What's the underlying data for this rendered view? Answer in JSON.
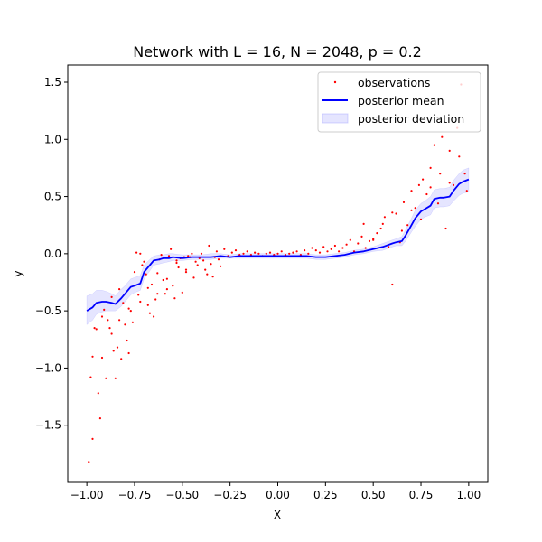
{
  "chart_data": {
    "type": "line",
    "title": "Network with L = 16, N = 2048, p = 0.2",
    "xlabel": "X",
    "ylabel": "y",
    "xlim": [
      -1.1,
      1.1
    ],
    "ylim": [
      -2.0,
      1.65
    ],
    "xticks": [
      -1.0,
      -0.75,
      -0.5,
      -0.25,
      0.0,
      0.25,
      0.5,
      0.75,
      1.0
    ],
    "xtick_labels": [
      "−1.00",
      "−0.75",
      "−0.50",
      "−0.25",
      "0.00",
      "0.25",
      "0.50",
      "0.75",
      "1.00"
    ],
    "yticks": [
      -1.5,
      -1.0,
      -0.5,
      0.0,
      0.5,
      1.0,
      1.5
    ],
    "ytick_labels": [
      "−1.5",
      "−1.0",
      "−0.5",
      "0.0",
      "0.5",
      "1.0",
      "1.5"
    ],
    "grid": false,
    "legend": {
      "position": "top-right",
      "entries": [
        "observations",
        "posterior mean",
        "posterior deviation"
      ]
    },
    "colors": {
      "observations": "#ff0000",
      "mean": "#0000ff",
      "band": "#7b7bff"
    },
    "series": [
      {
        "name": "observations",
        "kind": "scatter",
        "x": [
          -0.99,
          -0.98,
          -0.97,
          -0.96,
          -0.95,
          -0.94,
          -0.93,
          -0.92,
          -0.91,
          -0.9,
          -0.89,
          -0.88,
          -0.87,
          -0.86,
          -0.85,
          -0.84,
          -0.83,
          -0.82,
          -0.81,
          -0.8,
          -0.79,
          -0.78,
          -0.77,
          -0.76,
          -0.75,
          -0.74,
          -0.73,
          -0.72,
          -0.71,
          -0.7,
          -0.69,
          -0.68,
          -0.67,
          -0.66,
          -0.65,
          -0.64,
          -0.63,
          -0.62,
          -0.61,
          -0.6,
          -0.59,
          -0.58,
          -0.57,
          -0.56,
          -0.55,
          -0.54,
          -0.53,
          -0.52,
          -0.51,
          -0.5,
          -0.49,
          -0.48,
          -0.47,
          -0.46,
          -0.45,
          -0.44,
          -0.43,
          -0.42,
          -0.41,
          -0.4,
          -0.39,
          -0.38,
          -0.37,
          -0.36,
          -0.35,
          -0.34,
          -0.33,
          -0.32,
          -0.31,
          -0.3,
          -0.28,
          -0.26,
          -0.24,
          -0.22,
          -0.2,
          -0.18,
          -0.16,
          -0.14,
          -0.12,
          -0.1,
          -0.08,
          -0.06,
          -0.04,
          -0.02,
          0.0,
          0.02,
          0.04,
          0.06,
          0.08,
          0.1,
          0.12,
          0.14,
          0.16,
          0.18,
          0.2,
          0.22,
          0.24,
          0.26,
          0.28,
          0.3,
          0.32,
          0.34,
          0.36,
          0.38,
          0.4,
          0.42,
          0.44,
          0.46,
          0.48,
          0.5,
          0.52,
          0.54,
          0.56,
          0.58,
          0.6,
          0.62,
          0.64,
          0.66,
          0.68,
          0.7,
          0.72,
          0.74,
          0.76,
          0.78,
          0.8,
          0.82,
          0.84,
          0.86,
          0.88,
          0.9,
          0.92,
          0.94,
          0.96,
          0.98,
          0.99,
          -0.97,
          -0.92,
          -0.87,
          -0.83,
          -0.78,
          -0.72,
          -0.68,
          -0.63,
          -0.58,
          -0.53,
          -0.48,
          0.45,
          0.5,
          0.55,
          0.6,
          0.65,
          0.7,
          0.75,
          0.8,
          0.85,
          0.9,
          0.95
        ],
        "y": [
          -1.82,
          -1.08,
          -1.62,
          -0.65,
          -0.66,
          -1.22,
          -1.44,
          -0.91,
          -0.49,
          -1.09,
          -0.58,
          -0.65,
          -0.38,
          -0.85,
          -1.09,
          -0.82,
          -0.31,
          -0.92,
          -0.43,
          -0.62,
          -0.76,
          -0.87,
          -0.5,
          -0.6,
          -0.16,
          0.01,
          -0.36,
          0.0,
          -0.1,
          -0.07,
          -0.18,
          -0.45,
          -0.52,
          -0.27,
          -0.55,
          -0.4,
          -0.17,
          -0.05,
          -0.01,
          -0.23,
          -0.35,
          -0.31,
          -0.02,
          0.04,
          -0.28,
          -0.39,
          -0.08,
          -0.12,
          -0.04,
          -0.34,
          -0.03,
          -0.16,
          -0.02,
          -0.03,
          0.0,
          -0.21,
          -0.07,
          -0.1,
          -0.04,
          0.0,
          -0.06,
          -0.14,
          -0.18,
          0.07,
          -0.09,
          -0.2,
          -0.03,
          0.02,
          -0.05,
          -0.11,
          0.04,
          -0.02,
          0.01,
          0.03,
          -0.01,
          0.0,
          0.02,
          -0.01,
          0.01,
          0.0,
          -0.02,
          0.0,
          0.01,
          -0.01,
          0.0,
          0.02,
          -0.01,
          0.0,
          0.01,
          0.02,
          -0.01,
          0.03,
          0.0,
          0.05,
          0.03,
          0.01,
          0.06,
          0.02,
          0.04,
          0.07,
          0.02,
          0.05,
          0.08,
          0.12,
          0.02,
          0.09,
          0.15,
          0.05,
          0.11,
          0.13,
          0.18,
          0.22,
          0.32,
          0.06,
          -0.27,
          0.35,
          0.1,
          0.45,
          0.25,
          0.55,
          0.4,
          0.6,
          0.65,
          0.52,
          0.75,
          0.95,
          0.44,
          1.02,
          0.22,
          0.9,
          0.6,
          1.1,
          1.48,
          0.7,
          0.55,
          -0.9,
          -0.55,
          -0.7,
          -0.58,
          -0.48,
          -0.42,
          -0.3,
          -0.35,
          -0.22,
          -0.06,
          -0.14,
          0.26,
          0.12,
          0.26,
          0.36,
          0.2,
          0.38,
          0.3,
          0.58,
          0.7,
          0.62,
          0.85
        ]
      },
      {
        "name": "posterior mean",
        "kind": "line",
        "x": [
          -1.0,
          -0.97,
          -0.95,
          -0.92,
          -0.9,
          -0.87,
          -0.85,
          -0.82,
          -0.8,
          -0.77,
          -0.75,
          -0.72,
          -0.7,
          -0.67,
          -0.65,
          -0.62,
          -0.6,
          -0.57,
          -0.55,
          -0.5,
          -0.45,
          -0.4,
          -0.35,
          -0.3,
          -0.25,
          -0.2,
          -0.15,
          -0.1,
          -0.05,
          0.0,
          0.05,
          0.1,
          0.15,
          0.2,
          0.25,
          0.3,
          0.35,
          0.4,
          0.45,
          0.5,
          0.55,
          0.6,
          0.62,
          0.65,
          0.67,
          0.7,
          0.72,
          0.75,
          0.77,
          0.8,
          0.82,
          0.85,
          0.87,
          0.9,
          0.92,
          0.95,
          0.97,
          1.0
        ],
        "y": [
          -0.5,
          -0.47,
          -0.43,
          -0.42,
          -0.42,
          -0.43,
          -0.44,
          -0.39,
          -0.35,
          -0.29,
          -0.28,
          -0.26,
          -0.16,
          -0.1,
          -0.06,
          -0.05,
          -0.04,
          -0.04,
          -0.03,
          -0.04,
          -0.03,
          -0.03,
          -0.03,
          -0.02,
          -0.03,
          -0.02,
          -0.02,
          -0.02,
          -0.02,
          -0.02,
          -0.02,
          -0.02,
          -0.02,
          -0.03,
          -0.03,
          -0.02,
          -0.01,
          0.01,
          0.02,
          0.04,
          0.06,
          0.09,
          0.1,
          0.11,
          0.16,
          0.25,
          0.31,
          0.37,
          0.39,
          0.42,
          0.48,
          0.49,
          0.49,
          0.5,
          0.55,
          0.61,
          0.63,
          0.65
        ],
        "lower": [
          -0.62,
          -0.58,
          -0.53,
          -0.51,
          -0.5,
          -0.5,
          -0.5,
          -0.46,
          -0.42,
          -0.36,
          -0.34,
          -0.32,
          -0.22,
          -0.15,
          -0.1,
          -0.09,
          -0.08,
          -0.07,
          -0.06,
          -0.06,
          -0.05,
          -0.05,
          -0.05,
          -0.04,
          -0.04,
          -0.04,
          -0.04,
          -0.04,
          -0.04,
          -0.04,
          -0.04,
          -0.04,
          -0.04,
          -0.05,
          -0.05,
          -0.04,
          -0.03,
          -0.01,
          0.0,
          0.02,
          0.03,
          0.06,
          0.07,
          0.07,
          0.11,
          0.19,
          0.24,
          0.3,
          0.32,
          0.34,
          0.4,
          0.41,
          0.41,
          0.42,
          0.46,
          0.51,
          0.53,
          0.54
        ],
        "upper": [
          -0.37,
          -0.35,
          -0.32,
          -0.32,
          -0.33,
          -0.35,
          -0.37,
          -0.31,
          -0.28,
          -0.22,
          -0.21,
          -0.19,
          -0.1,
          -0.05,
          -0.02,
          -0.01,
          -0.01,
          0.0,
          0.0,
          -0.01,
          -0.01,
          -0.01,
          0.0,
          0.0,
          -0.01,
          0.0,
          0.0,
          0.0,
          0.0,
          0.0,
          0.0,
          0.0,
          0.0,
          -0.01,
          -0.01,
          0.0,
          0.01,
          0.03,
          0.04,
          0.06,
          0.09,
          0.12,
          0.13,
          0.15,
          0.21,
          0.31,
          0.38,
          0.44,
          0.46,
          0.5,
          0.56,
          0.57,
          0.57,
          0.58,
          0.64,
          0.7,
          0.73,
          0.75
        ]
      }
    ]
  }
}
